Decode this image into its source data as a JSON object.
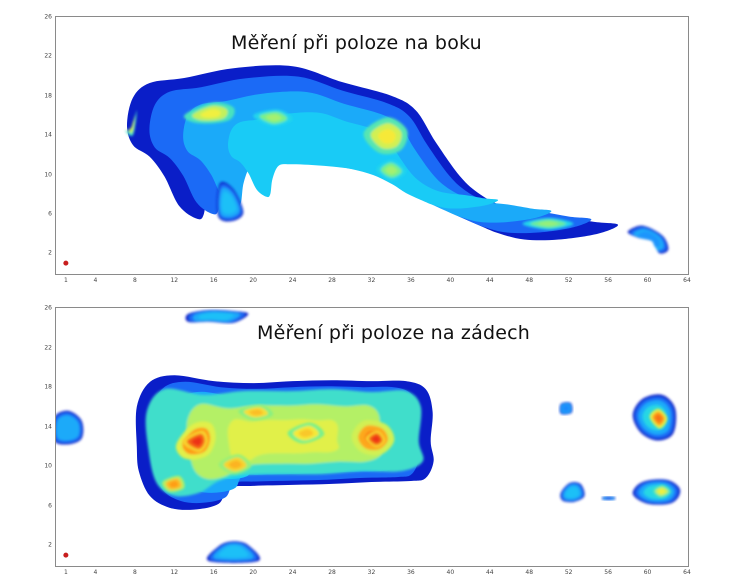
{
  "colors": {
    "scale": [
      "#0a1ec8",
      "#1e78ff",
      "#19d2f5",
      "#78f08c",
      "#f5f03c",
      "#ff9614",
      "#e61414"
    ],
    "border": "#8a8a8a",
    "marker": "#c81e1e"
  },
  "chart_data": [
    {
      "type": "heatmap",
      "title": "Měření při poloze na boku",
      "xlabel": "",
      "ylabel": "",
      "xlim": [
        0,
        64
      ],
      "ylim": [
        0,
        26
      ],
      "x_ticks": [
        "1",
        "4",
        "8",
        "12",
        "16",
        "20",
        "24",
        "28",
        "32",
        "36",
        "40",
        "44",
        "48",
        "52",
        "56",
        "60",
        "64"
      ],
      "y_ticks": [
        "2",
        "6",
        "10",
        "14",
        "18",
        "22",
        "26"
      ],
      "marker": {
        "x": 1,
        "y": 1
      },
      "regions": [
        {
          "level": 0.32,
          "points": [
            [
              7.2,
              15
            ],
            [
              7.8,
              17.8
            ],
            [
              9.5,
              19.3
            ],
            [
              13,
              19.8
            ],
            [
              18,
              20.8
            ],
            [
              24,
              21
            ],
            [
              29,
              19.4
            ],
            [
              34,
              18
            ],
            [
              36.5,
              16.5
            ],
            [
              38.5,
              13.3
            ],
            [
              41,
              9.8
            ],
            [
              43,
              8
            ],
            [
              45.5,
              6.7
            ],
            [
              48,
              6.1
            ],
            [
              51,
              5.8
            ],
            [
              54.5,
              5.2
            ],
            [
              57,
              4.9
            ],
            [
              55,
              4
            ],
            [
              51,
              3.4
            ],
            [
              47.5,
              3.4
            ],
            [
              45,
              4
            ],
            [
              43,
              4.8
            ],
            [
              40,
              6.2
            ],
            [
              37.5,
              7.8
            ],
            [
              34,
              9.5
            ],
            [
              30,
              10.6
            ],
            [
              26,
              11.1
            ],
            [
              22,
              11.4
            ],
            [
              18.5,
              11.5
            ],
            [
              16.5,
              11.2
            ],
            [
              15.4,
              8.8
            ],
            [
              15,
              6
            ],
            [
              14.3,
              5.5
            ],
            [
              12.5,
              6.8
            ],
            [
              11,
              9.8
            ],
            [
              9.5,
              11.8
            ],
            [
              7.8,
              13
            ]
          ]
        },
        {
          "level": 0.58,
          "points": [
            [
              7.6,
              14.5
            ],
            [
              8.2,
              16.5
            ],
            [
              7.8,
              14
            ],
            [
              7,
              14.5
            ]
          ]
        },
        {
          "level": 0.6,
          "points": [
            [
              13,
              16
            ],
            [
              15.8,
              17.3
            ],
            [
              18,
              16.8
            ],
            [
              17.5,
              15.5
            ],
            [
              14.5,
              15.2
            ]
          ]
        },
        {
          "level": 0.5,
          "points": [
            [
              20,
              16
            ],
            [
              22.5,
              16.6
            ],
            [
              24,
              15.6
            ],
            [
              22,
              14.9
            ]
          ]
        },
        {
          "level": 0.62,
          "points": [
            [
              31.2,
              14.2
            ],
            [
              33.6,
              15.8
            ],
            [
              35.6,
              14.5
            ],
            [
              35,
              12.5
            ],
            [
              32.8,
              12.2
            ]
          ]
        },
        {
          "level": 0.5,
          "points": [
            [
              32.5,
              10.5
            ],
            [
              34,
              11.5
            ],
            [
              35.5,
              10.3
            ],
            [
              34,
              9.4
            ]
          ]
        },
        {
          "level": 0.48,
          "points": [
            [
              47.3,
              5
            ],
            [
              50,
              5.6
            ],
            [
              52.5,
              5
            ],
            [
              50,
              4.4
            ]
          ]
        },
        {
          "level": 0.3,
          "points": [
            [
              16.3,
              7.2
            ],
            [
              16.7,
              9.2
            ],
            [
              18,
              8.5
            ],
            [
              19,
              6.2
            ],
            [
              18,
              5.3
            ],
            [
              16.6,
              5.5
            ]
          ]
        },
        {
          "level": 0.22,
          "points": [
            [
              58,
              4.2
            ],
            [
              59.5,
              4.8
            ],
            [
              61.5,
              3.8
            ],
            [
              62.1,
              2.4
            ],
            [
              61.2,
              2
            ],
            [
              60.5,
              3.2
            ],
            [
              59,
              3.6
            ]
          ]
        }
      ]
    },
    {
      "type": "heatmap",
      "title": "Měření při poloze na zádech",
      "xlabel": "",
      "ylabel": "",
      "xlim": [
        0,
        64
      ],
      "ylim": [
        0,
        26
      ],
      "x_ticks": [
        "1",
        "4",
        "8",
        "12",
        "16",
        "20",
        "24",
        "28",
        "32",
        "36",
        "40",
        "44",
        "48",
        "52",
        "56",
        "60",
        "64"
      ],
      "y_ticks": [
        "2",
        "6",
        "10",
        "14",
        "18",
        "22",
        "26"
      ],
      "marker": {
        "x": 1,
        "y": 1
      },
      "regions": [
        {
          "level": 0.32,
          "points": [
            [
              8.2,
              16
            ],
            [
              9.5,
              18.5
            ],
            [
              12,
              19.2
            ],
            [
              16,
              18.6
            ],
            [
              20,
              18.4
            ],
            [
              24,
              18.6
            ],
            [
              28,
              18.7
            ],
            [
              32,
              18.6
            ],
            [
              35.5,
              18.6
            ],
            [
              37.5,
              17.8
            ],
            [
              38.2,
              15.5
            ],
            [
              38,
              12.5
            ],
            [
              38.3,
              10.5
            ],
            [
              37.5,
              8.8
            ],
            [
              36,
              8.5
            ],
            [
              32,
              8.4
            ],
            [
              28,
              8.2
            ],
            [
              24,
              8.1
            ],
            [
              20,
              8
            ],
            [
              17.5,
              7.8
            ],
            [
              16.5,
              6.2
            ],
            [
              14,
              5.6
            ],
            [
              11.5,
              5.8
            ],
            [
              9.5,
              7
            ],
            [
              8.4,
              9.5
            ],
            [
              8.2,
              12
            ]
          ]
        },
        {
          "level": 0.58,
          "points": [
            [
              9.2,
              15.5
            ],
            [
              11,
              17.8
            ],
            [
              15,
              17.2
            ],
            [
              19,
              17.6
            ],
            [
              24,
              17.6
            ],
            [
              28,
              17.8
            ],
            [
              32,
              17.5
            ],
            [
              35.5,
              17.6
            ],
            [
              37,
              16
            ],
            [
              36.8,
              12.5
            ],
            [
              37.2,
              10.5
            ],
            [
              35,
              9.5
            ],
            [
              31,
              9.5
            ],
            [
              27,
              9.2
            ],
            [
              23,
              9.2
            ],
            [
              19,
              9.1
            ],
            [
              16.5,
              8.5
            ],
            [
              14.5,
              7.3
            ],
            [
              12,
              7
            ],
            [
              10.2,
              8.3
            ],
            [
              9.4,
              11.5
            ]
          ]
        },
        {
          "level": 0.82,
          "points": [
            [
              12.2,
              12.2
            ],
            [
              13.8,
              14.2
            ],
            [
              15.6,
              14.4
            ],
            [
              16.2,
              13
            ],
            [
              15.6,
              11.3
            ],
            [
              14.2,
              10.7
            ],
            [
              12.8,
              10.9
            ]
          ]
        },
        {
          "level": 0.9,
          "points": [
            [
              12.8,
              12.5
            ],
            [
              14.8,
              13.6
            ],
            [
              15.4,
              12.5
            ],
            [
              14.5,
              11.4
            ]
          ]
        },
        {
          "level": 0.8,
          "points": [
            [
              30,
              13
            ],
            [
              31.2,
              14.6
            ],
            [
              33.5,
              14.2
            ],
            [
              34.3,
              12.6
            ],
            [
              33,
              11.2
            ],
            [
              31,
              11.4
            ]
          ]
        },
        {
          "level": 0.9,
          "points": [
            [
              31.4,
              12.8
            ],
            [
              32.6,
              13.6
            ],
            [
              33.4,
              12.6
            ],
            [
              32.5,
              11.9
            ]
          ]
        },
        {
          "level": 0.76,
          "points": [
            [
              10.8,
              8.4
            ],
            [
              12.5,
              9
            ],
            [
              13,
              7.8
            ],
            [
              11.5,
              7.4
            ]
          ]
        },
        {
          "level": 0.7,
          "points": [
            [
              18.5,
              15.6
            ],
            [
              20.8,
              16.2
            ],
            [
              22,
              15.2
            ],
            [
              20,
              14.7
            ]
          ]
        },
        {
          "level": 0.68,
          "points": [
            [
              23.5,
              13.4
            ],
            [
              25.8,
              14.4
            ],
            [
              27.2,
              13.2
            ],
            [
              25,
              12.3
            ]
          ]
        },
        {
          "level": 0.72,
          "points": [
            [
              16.5,
              10.2
            ],
            [
              18.5,
              11.2
            ],
            [
              19.8,
              10
            ],
            [
              18,
              9.2
            ]
          ]
        },
        {
          "level": 0.26,
          "points": [
            [
              -0.2,
              14.9
            ],
            [
              1.2,
              15.6
            ],
            [
              2.6,
              14.6
            ],
            [
              2.6,
              12.8
            ],
            [
              1.2,
              12.2
            ],
            [
              -0.2,
              12.6
            ]
          ]
        },
        {
          "level": 0.3,
          "points": [
            [
              13.4,
              25.4
            ],
            [
              15.5,
              25.8
            ],
            [
              18,
              25.7
            ],
            [
              19.5,
              25.4
            ],
            [
              18,
              24.5
            ],
            [
              15.5,
              24.6
            ],
            [
              13.4,
              24.6
            ]
          ]
        },
        {
          "level": 0.3,
          "points": [
            [
              15.5,
              0.4
            ],
            [
              16.5,
              1.9
            ],
            [
              18,
              2.4
            ],
            [
              19.5,
              2
            ],
            [
              20.5,
              0.4
            ]
          ]
        },
        {
          "level": 0.2,
          "points": [
            [
              51.2,
              16.3
            ],
            [
              52.2,
              16.4
            ],
            [
              52.3,
              15.4
            ],
            [
              51.2,
              15.3
            ]
          ]
        },
        {
          "level": 0.3,
          "points": [
            [
              51.2,
              7.3
            ],
            [
              52.1,
              8.3
            ],
            [
              53.2,
              8.2
            ],
            [
              53.6,
              7
            ],
            [
              52.6,
              6.4
            ],
            [
              51.4,
              6.5
            ]
          ]
        },
        {
          "level": 0.36,
          "points": [
            [
              58.5,
              15.2
            ],
            [
              59.5,
              16.8
            ],
            [
              61.5,
              17.2
            ],
            [
              62.8,
              15.8
            ],
            [
              62.6,
              13.3
            ],
            [
              61,
              12.6
            ],
            [
              59.3,
              13.4
            ]
          ]
        },
        {
          "level": 0.82,
          "points": [
            [
              60.2,
              15
            ],
            [
              61.1,
              15.8
            ],
            [
              62,
              14.8
            ],
            [
              61.2,
              13.8
            ]
          ]
        },
        {
          "level": 0.36,
          "points": [
            [
              58.5,
              7.2
            ],
            [
              59.5,
              8.4
            ],
            [
              62,
              8.6
            ],
            [
              63.3,
              7.6
            ],
            [
              62.5,
              6.3
            ],
            [
              60,
              6.2
            ]
          ]
        },
        {
          "level": 0.6,
          "points": [
            [
              60.5,
              7.5
            ],
            [
              61.5,
              8.1
            ],
            [
              62.4,
              7.4
            ],
            [
              61.3,
              6.8
            ]
          ]
        },
        {
          "level": 0.1,
          "points": [
            [
              55.5,
              6.9
            ],
            [
              56.6,
              6.9
            ],
            [
              56.6,
              6.6
            ],
            [
              55.5,
              6.6
            ]
          ]
        }
      ]
    }
  ]
}
